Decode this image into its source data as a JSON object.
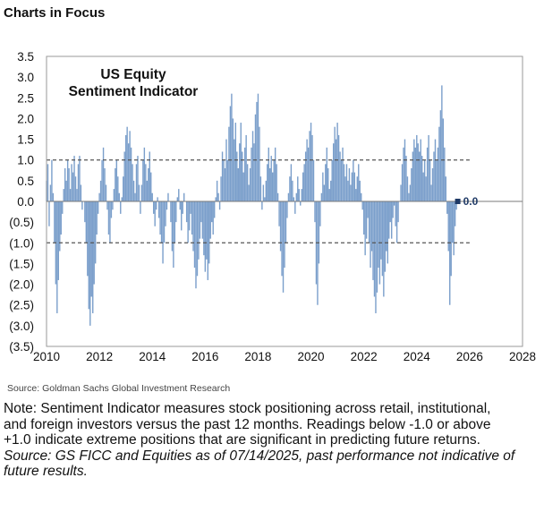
{
  "header": {
    "title": "Charts in Focus"
  },
  "chart_data": {
    "type": "area",
    "title_lines": [
      "US Equity",
      "Sentiment Indicator"
    ],
    "xlabel": "",
    "ylabel": "",
    "xlim": [
      2010,
      2028
    ],
    "ylim": [
      -3.5,
      3.5
    ],
    "x_ticks": [
      2010,
      2012,
      2014,
      2016,
      2018,
      2020,
      2022,
      2024,
      2026,
      2028
    ],
    "y_ticks": [
      {
        "value": 3.5,
        "label": "3.5"
      },
      {
        "value": 3.0,
        "label": "3.0"
      },
      {
        "value": 2.5,
        "label": "2.5"
      },
      {
        "value": 2.0,
        "label": "2.0"
      },
      {
        "value": 1.5,
        "label": "1.5"
      },
      {
        "value": 1.0,
        "label": "1.0"
      },
      {
        "value": 0.5,
        "label": "0.5"
      },
      {
        "value": 0.0,
        "label": "0.0"
      },
      {
        "value": -0.5,
        "label": "(0.5)"
      },
      {
        "value": -1.0,
        "label": "(1.0)"
      },
      {
        "value": -1.5,
        "label": "(1.5)"
      },
      {
        "value": -2.0,
        "label": "(2.0)"
      },
      {
        "value": -2.5,
        "label": "(2.5)"
      },
      {
        "value": -3.0,
        "label": "(3.0)"
      },
      {
        "value": -3.5,
        "label": "(3.5)"
      }
    ],
    "threshold_lines": [
      1.0,
      -1.0
    ],
    "series_color": "#7b9fcb",
    "last_value": {
      "x": 2025.55,
      "y": 0.0,
      "label": "0.0"
    },
    "data": [
      [
        2010.0,
        0.5
      ],
      [
        2010.05,
        0.9
      ],
      [
        2010.1,
        -0.6
      ],
      [
        2010.15,
        0.4
      ],
      [
        2010.2,
        1.0
      ],
      [
        2010.25,
        0.2
      ],
      [
        2010.3,
        -1.0
      ],
      [
        2010.35,
        -2.0
      ],
      [
        2010.4,
        -2.7
      ],
      [
        2010.45,
        -1.9
      ],
      [
        2010.5,
        -1.2
      ],
      [
        2010.55,
        -0.8
      ],
      [
        2010.6,
        -0.3
      ],
      [
        2010.65,
        0.3
      ],
      [
        2010.7,
        0.8
      ],
      [
        2010.75,
        0.5
      ],
      [
        2010.8,
        1.0
      ],
      [
        2010.85,
        0.8
      ],
      [
        2010.9,
        0.3
      ],
      [
        2010.95,
        0.9
      ],
      [
        2011.0,
        0.7
      ],
      [
        2011.05,
        1.1
      ],
      [
        2011.1,
        0.6
      ],
      [
        2011.15,
        0.3
      ],
      [
        2011.2,
        0.9
      ],
      [
        2011.25,
        1.1
      ],
      [
        2011.3,
        0.4
      ],
      [
        2011.35,
        -0.2
      ],
      [
        2011.4,
        0.0
      ],
      [
        2011.45,
        -0.5
      ],
      [
        2011.5,
        -1.0
      ],
      [
        2011.55,
        -1.8
      ],
      [
        2011.6,
        -2.6
      ],
      [
        2011.65,
        -3.0
      ],
      [
        2011.7,
        -2.3
      ],
      [
        2011.75,
        -2.7
      ],
      [
        2011.8,
        -2.0
      ],
      [
        2011.85,
        -1.5
      ],
      [
        2011.9,
        -0.8
      ],
      [
        2011.95,
        -0.3
      ],
      [
        2012.0,
        0.2
      ],
      [
        2012.05,
        0.5
      ],
      [
        2012.1,
        1.0
      ],
      [
        2012.15,
        1.3
      ],
      [
        2012.2,
        0.8
      ],
      [
        2012.25,
        0.4
      ],
      [
        2012.3,
        -0.2
      ],
      [
        2012.35,
        -0.8
      ],
      [
        2012.4,
        -1.0
      ],
      [
        2012.45,
        -0.4
      ],
      [
        2012.5,
        -0.2
      ],
      [
        2012.55,
        0.3
      ],
      [
        2012.6,
        0.8
      ],
      [
        2012.65,
        1.0
      ],
      [
        2012.7,
        0.6
      ],
      [
        2012.75,
        0.2
      ],
      [
        2012.8,
        -0.3
      ],
      [
        2012.85,
        0.1
      ],
      [
        2012.9,
        0.6
      ],
      [
        2012.95,
        1.2
      ],
      [
        2013.0,
        1.6
      ],
      [
        2013.05,
        1.8
      ],
      [
        2013.1,
        1.4
      ],
      [
        2013.15,
        1.7
      ],
      [
        2013.2,
        1.3
      ],
      [
        2013.25,
        0.9
      ],
      [
        2013.3,
        0.5
      ],
      [
        2013.35,
        0.2
      ],
      [
        2013.4,
        0.9
      ],
      [
        2013.45,
        1.1
      ],
      [
        2013.5,
        0.4
      ],
      [
        2013.55,
        -0.3
      ],
      [
        2013.6,
        0.4
      ],
      [
        2013.65,
        1.0
      ],
      [
        2013.7,
        1.3
      ],
      [
        2013.75,
        0.9
      ],
      [
        2013.8,
        0.5
      ],
      [
        2013.85,
        0.8
      ],
      [
        2013.9,
        1.2
      ],
      [
        2013.95,
        0.7
      ],
      [
        2014.0,
        0.2
      ],
      [
        2014.05,
        -0.3
      ],
      [
        2014.1,
        -0.6
      ],
      [
        2014.15,
        -0.2
      ],
      [
        2014.2,
        0.1
      ],
      [
        2014.25,
        -0.4
      ],
      [
        2014.3,
        -0.8
      ],
      [
        2014.35,
        -1.0
      ],
      [
        2014.4,
        -1.5
      ],
      [
        2014.45,
        -1.0
      ],
      [
        2014.5,
        -0.6
      ],
      [
        2014.55,
        -0.2
      ],
      [
        2014.6,
        0.2
      ],
      [
        2014.65,
        0.0
      ],
      [
        2014.7,
        -0.5
      ],
      [
        2014.75,
        -1.2
      ],
      [
        2014.8,
        -1.6
      ],
      [
        2014.85,
        -1.0
      ],
      [
        2014.9,
        -0.5
      ],
      [
        2014.95,
        0.1
      ],
      [
        2015.0,
        0.3
      ],
      [
        2015.05,
        -0.2
      ],
      [
        2015.1,
        -0.7
      ],
      [
        2015.15,
        -0.3
      ],
      [
        2015.2,
        0.2
      ],
      [
        2015.25,
        0.0
      ],
      [
        2015.3,
        -0.5
      ],
      [
        2015.35,
        -1.0
      ],
      [
        2015.4,
        -0.7
      ],
      [
        2015.45,
        -0.3
      ],
      [
        2015.5,
        -0.8
      ],
      [
        2015.55,
        -1.2
      ],
      [
        2015.6,
        -1.6
      ],
      [
        2015.65,
        -2.1
      ],
      [
        2015.7,
        -1.8
      ],
      [
        2015.75,
        -1.4
      ],
      [
        2015.8,
        -0.9
      ],
      [
        2015.85,
        -0.5
      ],
      [
        2015.9,
        -0.9
      ],
      [
        2015.95,
        -1.3
      ],
      [
        2016.0,
        -1.7
      ],
      [
        2016.05,
        -1.4
      ],
      [
        2016.1,
        -1.9
      ],
      [
        2016.15,
        -1.5
      ],
      [
        2016.2,
        -0.9
      ],
      [
        2016.25,
        -0.5
      ],
      [
        2016.3,
        -0.8
      ],
      [
        2016.35,
        -0.4
      ],
      [
        2016.4,
        0.1
      ],
      [
        2016.45,
        0.5
      ],
      [
        2016.5,
        0.2
      ],
      [
        2016.55,
        -0.2
      ],
      [
        2016.6,
        0.6
      ],
      [
        2016.65,
        1.2
      ],
      [
        2016.7,
        1.0
      ],
      [
        2016.75,
        0.8
      ],
      [
        2016.8,
        1.5
      ],
      [
        2016.85,
        1.0
      ],
      [
        2016.9,
        1.8
      ],
      [
        2016.95,
        2.3
      ],
      [
        2017.0,
        2.6
      ],
      [
        2017.05,
        2.0
      ],
      [
        2017.1,
        1.5
      ],
      [
        2017.15,
        1.9
      ],
      [
        2017.2,
        1.2
      ],
      [
        2017.25,
        0.8
      ],
      [
        2017.3,
        1.4
      ],
      [
        2017.35,
        1.9
      ],
      [
        2017.4,
        1.2
      ],
      [
        2017.45,
        0.7
      ],
      [
        2017.5,
        1.3
      ],
      [
        2017.55,
        1.6
      ],
      [
        2017.6,
        0.9
      ],
      [
        2017.65,
        0.4
      ],
      [
        2017.7,
        0.8
      ],
      [
        2017.75,
        1.3
      ],
      [
        2017.8,
        1.7
      ],
      [
        2017.85,
        1.4
      ],
      [
        2017.9,
        2.1
      ],
      [
        2017.95,
        2.4
      ],
      [
        2018.0,
        2.6
      ],
      [
        2018.05,
        1.8
      ],
      [
        2018.1,
        0.6
      ],
      [
        2018.15,
        -0.2
      ],
      [
        2018.2,
        0.4
      ],
      [
        2018.25,
        0.1
      ],
      [
        2018.3,
        0.5
      ],
      [
        2018.35,
        0.9
      ],
      [
        2018.4,
        1.3
      ],
      [
        2018.45,
        0.8
      ],
      [
        2018.5,
        1.1
      ],
      [
        2018.55,
        0.7
      ],
      [
        2018.6,
        1.0
      ],
      [
        2018.65,
        1.3
      ],
      [
        2018.7,
        0.9
      ],
      [
        2018.75,
        0.2
      ],
      [
        2018.8,
        -0.6
      ],
      [
        2018.85,
        -1.2
      ],
      [
        2018.9,
        -1.8
      ],
      [
        2018.95,
        -2.2
      ],
      [
        2019.0,
        -1.6
      ],
      [
        2019.05,
        -1.0
      ],
      [
        2019.1,
        -0.4
      ],
      [
        2019.15,
        0.2
      ],
      [
        2019.2,
        0.6
      ],
      [
        2019.25,
        0.9
      ],
      [
        2019.3,
        0.5
      ],
      [
        2019.35,
        0.1
      ],
      [
        2019.4,
        -0.3
      ],
      [
        2019.45,
        0.2
      ],
      [
        2019.5,
        0.6
      ],
      [
        2019.55,
        0.3
      ],
      [
        2019.6,
        -0.1
      ],
      [
        2019.65,
        0.3
      ],
      [
        2019.7,
        0.7
      ],
      [
        2019.75,
        0.9
      ],
      [
        2019.8,
        1.2
      ],
      [
        2019.85,
        1.5
      ],
      [
        2019.9,
        1.3
      ],
      [
        2019.95,
        1.7
      ],
      [
        2020.0,
        1.9
      ],
      [
        2020.05,
        1.6
      ],
      [
        2020.1,
        1.0
      ],
      [
        2020.15,
        -0.5
      ],
      [
        2020.2,
        -2.0
      ],
      [
        2020.25,
        -2.5
      ],
      [
        2020.3,
        -1.5
      ],
      [
        2020.35,
        -0.6
      ],
      [
        2020.4,
        0.2
      ],
      [
        2020.45,
        0.7
      ],
      [
        2020.5,
        0.4
      ],
      [
        2020.55,
        0.9
      ],
      [
        2020.6,
        1.3
      ],
      [
        2020.65,
        0.8
      ],
      [
        2020.7,
        0.3
      ],
      [
        2020.75,
        0.5
      ],
      [
        2020.8,
        1.0
      ],
      [
        2020.85,
        1.4
      ],
      [
        2020.9,
        1.8
      ],
      [
        2020.95,
        1.5
      ],
      [
        2021.0,
        1.9
      ],
      [
        2021.05,
        1.6
      ],
      [
        2021.1,
        1.2
      ],
      [
        2021.15,
        1.0
      ],
      [
        2021.2,
        1.3
      ],
      [
        2021.25,
        0.9
      ],
      [
        2021.3,
        0.6
      ],
      [
        2021.35,
        0.9
      ],
      [
        2021.4,
        0.5
      ],
      [
        2021.45,
        0.8
      ],
      [
        2021.5,
        0.4
      ],
      [
        2021.55,
        0.7
      ],
      [
        2021.6,
        1.0
      ],
      [
        2021.65,
        0.7
      ],
      [
        2021.7,
        0.3
      ],
      [
        2021.75,
        0.6
      ],
      [
        2021.8,
        0.9
      ],
      [
        2021.85,
        0.5
      ],
      [
        2021.9,
        0.2
      ],
      [
        2021.95,
        -0.2
      ],
      [
        2022.0,
        -0.8
      ],
      [
        2022.05,
        -1.3
      ],
      [
        2022.1,
        -0.9
      ],
      [
        2022.15,
        -0.4
      ],
      [
        2022.2,
        -1.0
      ],
      [
        2022.25,
        -1.6
      ],
      [
        2022.3,
        -1.2
      ],
      [
        2022.35,
        -1.9
      ],
      [
        2022.4,
        -2.3
      ],
      [
        2022.45,
        -2.7
      ],
      [
        2022.5,
        -2.2
      ],
      [
        2022.55,
        -1.6
      ],
      [
        2022.6,
        -2.0
      ],
      [
        2022.65,
        -1.4
      ],
      [
        2022.7,
        -1.8
      ],
      [
        2022.75,
        -2.3
      ],
      [
        2022.8,
        -1.7
      ],
      [
        2022.85,
        -1.2
      ],
      [
        2022.9,
        -1.5
      ],
      [
        2022.95,
        -0.9
      ],
      [
        2023.0,
        -0.5
      ],
      [
        2023.05,
        -0.9
      ],
      [
        2023.1,
        -0.4
      ],
      [
        2023.15,
        -0.1
      ],
      [
        2023.2,
        -0.6
      ],
      [
        2023.25,
        -1.0
      ],
      [
        2023.3,
        -0.5
      ],
      [
        2023.35,
        0.0
      ],
      [
        2023.4,
        0.4
      ],
      [
        2023.45,
        0.9
      ],
      [
        2023.5,
        1.3
      ],
      [
        2023.55,
        1.5
      ],
      [
        2023.6,
        1.1
      ],
      [
        2023.65,
        0.6
      ],
      [
        2023.7,
        0.2
      ],
      [
        2023.75,
        0.4
      ],
      [
        2023.8,
        0.8
      ],
      [
        2023.85,
        1.2
      ],
      [
        2023.9,
        1.5
      ],
      [
        2023.95,
        1.3
      ],
      [
        2024.0,
        1.6
      ],
      [
        2024.05,
        1.4
      ],
      [
        2024.1,
        1.2
      ],
      [
        2024.15,
        1.5
      ],
      [
        2024.2,
        1.1
      ],
      [
        2024.25,
        0.7
      ],
      [
        2024.3,
        1.0
      ],
      [
        2024.35,
        0.6
      ],
      [
        2024.4,
        1.3
      ],
      [
        2024.45,
        1.6
      ],
      [
        2024.5,
        1.0
      ],
      [
        2024.55,
        0.4
      ],
      [
        2024.6,
        0.8
      ],
      [
        2024.65,
        1.2
      ],
      [
        2024.7,
        1.5
      ],
      [
        2024.75,
        1.0
      ],
      [
        2024.8,
        1.3
      ],
      [
        2024.85,
        1.8
      ],
      [
        2024.9,
        2.2
      ],
      [
        2024.95,
        2.8
      ],
      [
        2025.0,
        2.0
      ],
      [
        2025.05,
        1.3
      ],
      [
        2025.1,
        0.6
      ],
      [
        2025.15,
        -0.3
      ],
      [
        2025.2,
        -1.2
      ],
      [
        2025.25,
        -2.5
      ],
      [
        2025.3,
        -1.8
      ],
      [
        2025.35,
        -1.0
      ],
      [
        2025.4,
        -1.3
      ],
      [
        2025.45,
        -0.6
      ],
      [
        2025.5,
        -0.2
      ],
      [
        2025.55,
        0.0
      ]
    ]
  },
  "source_small": "Source: Goldman Sachs Global Investment Research",
  "note": {
    "line1": "Note: Sentiment Indicator measures stock positioning across retail, institutional,",
    "line2": "and foreign investors versus the past 12 months. Readings below -1.0 or above",
    "line3": "+1.0 indicate extreme positions that are significant in predicting future returns.",
    "source": "Source: GS FICC and Equities as of 07/14/2025, past performance not indicative of future results."
  }
}
